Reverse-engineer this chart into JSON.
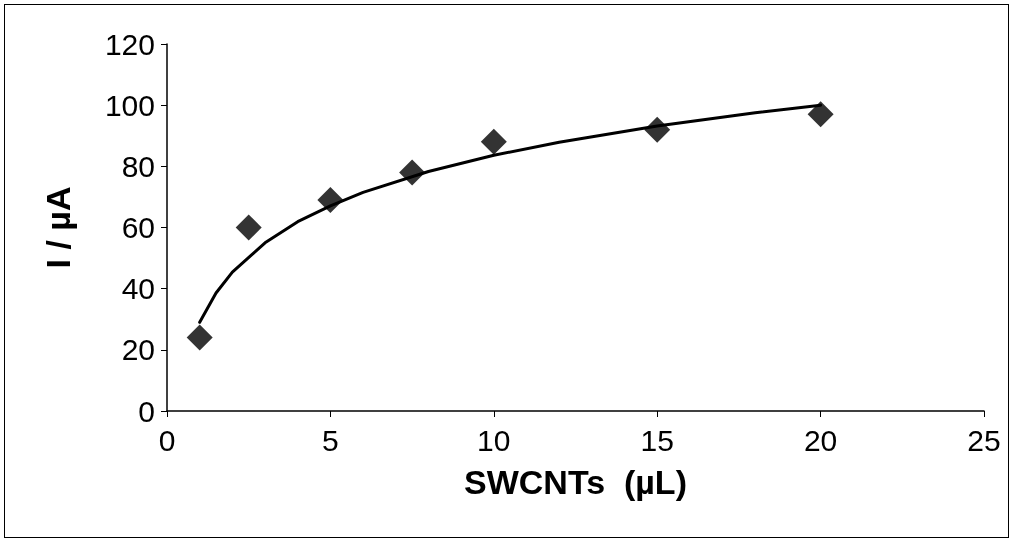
{
  "chart_data": {
    "type": "scatter",
    "xlabel": "SWCNTs  (µL)",
    "ylabel": "I / µA",
    "xlim": [
      0,
      25
    ],
    "xticks": [
      0,
      5,
      10,
      15,
      20,
      25
    ],
    "ylim": [
      0,
      120
    ],
    "yticks": [
      0,
      20,
      40,
      60,
      80,
      100,
      120
    ],
    "grid": false,
    "series": [
      {
        "color": "#000000",
        "marker": "diamond",
        "x": [
          1,
          2.5,
          5,
          7.5,
          10,
          15,
          20
        ],
        "values": [
          24,
          60,
          69,
          78,
          88,
          92,
          97
        ]
      },
      {
        "type": "line",
        "color": "#000000",
        "marker": "none",
        "line_style": "solid",
        "x": [
          1,
          1.5,
          2,
          3,
          4,
          5,
          6,
          8,
          10,
          12,
          15,
          18,
          20
        ],
        "values": [
          29,
          38.6,
          45.4,
          55,
          61.9,
          67.1,
          71.5,
          78.3,
          83.6,
          87.9,
          93.2,
          97.5,
          100
        ]
      }
    ]
  }
}
